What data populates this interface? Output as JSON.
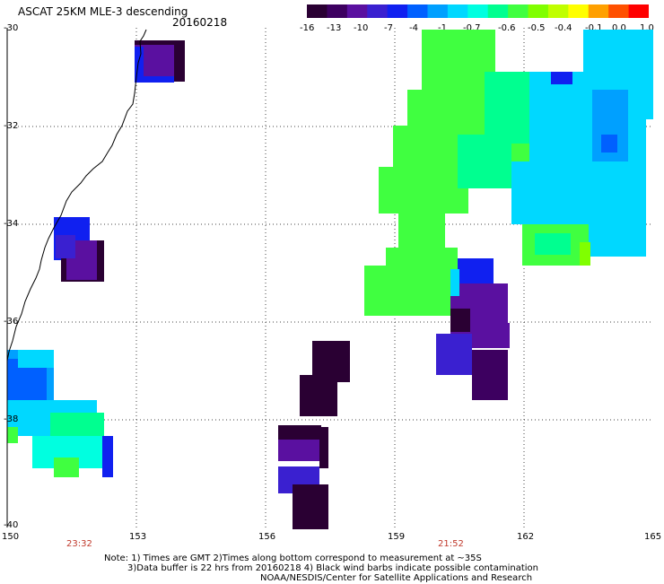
{
  "header": {
    "title": "ASCAT 25KM MLE-3 descending",
    "date": "20160218"
  },
  "colorbar": {
    "colors": [
      "#2a0033",
      "#3d0060",
      "#5a10a0",
      "#3a20d0",
      "#1020f0",
      "#0060ff",
      "#00a0ff",
      "#00d8ff",
      "#00ffe0",
      "#00ff90",
      "#40ff40",
      "#80ff00",
      "#c0ff00",
      "#ffff00",
      "#ffa000",
      "#ff5000",
      "#ff0000"
    ],
    "labels": [
      "-16",
      "-13",
      "-10",
      "-7",
      "-4",
      "-1",
      "-0.7",
      "-0.6",
      "-0.5",
      "-0.4",
      "-0.1",
      "0.0",
      "1.0"
    ]
  },
  "axes": {
    "y_labels": [
      "-30",
      "-32",
      "-34",
      "-36",
      "-38",
      "-40"
    ],
    "x_labels": [
      "150",
      "153",
      "156",
      "159",
      "162",
      "165"
    ]
  },
  "times": {
    "left": "23:32",
    "right": "21:52"
  },
  "notes": {
    "line1": "Note: 1) Times are GMT 2)Times along bottom correspond to measurement at ~35S",
    "line2": "3)Data buffer is 22 hrs from 20160218 4) Black wind barbs indicate possible contamination",
    "line3": "NOAA/NESDIS/Center for Satellite Applications and Research"
  }
}
